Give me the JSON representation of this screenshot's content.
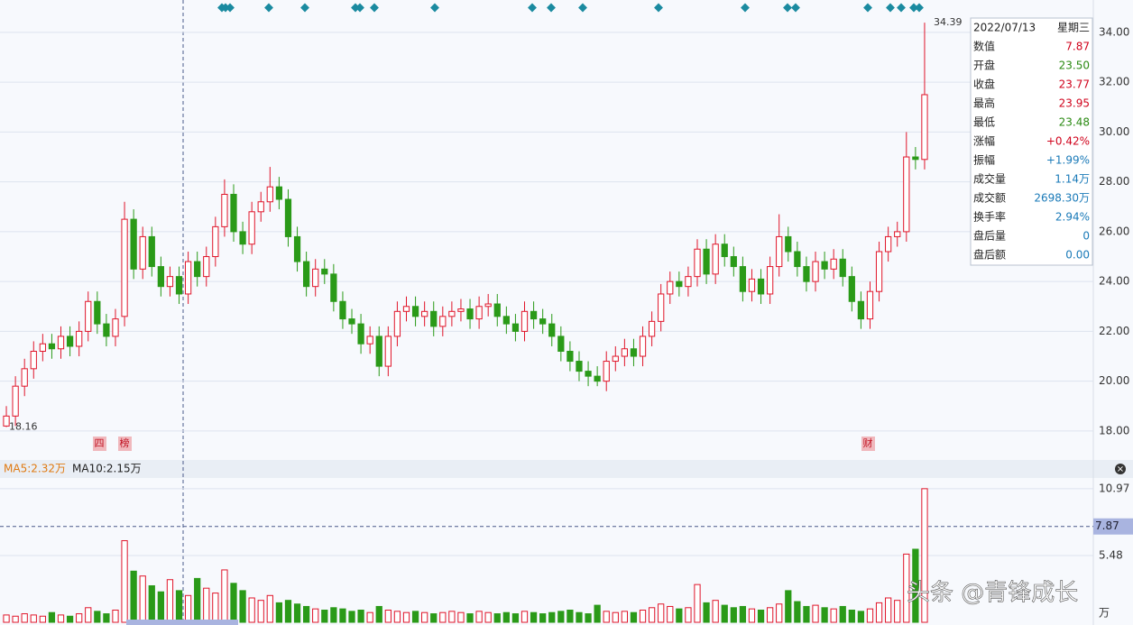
{
  "chart_data": {
    "type": "candlestick",
    "candles": {
      "open": [
        18.2,
        18.6,
        19.8,
        20.5,
        21.2,
        21.5,
        21.3,
        21.8,
        21.4,
        22.0,
        23.2,
        22.3,
        21.8,
        22.6,
        26.5,
        24.5,
        25.8,
        24.6,
        23.8,
        24.2,
        23.5,
        24.8,
        24.2,
        25.0,
        26.2,
        27.5,
        26.0,
        25.5,
        26.8,
        27.2,
        27.8,
        27.3,
        25.8,
        24.8,
        23.8,
        24.5,
        24.3,
        23.2,
        22.5,
        22.3,
        21.5,
        21.8,
        20.6,
        21.8,
        22.8,
        23.0,
        22.6,
        22.8,
        22.2,
        22.6,
        22.8,
        22.9,
        22.5,
        23.0,
        23.1,
        22.6,
        22.3,
        22.0,
        22.8,
        22.5,
        22.3,
        21.8,
        21.2,
        20.8,
        20.4,
        20.2,
        20.0,
        20.8,
        21.0,
        21.3,
        21.0,
        21.8,
        22.4,
        23.5,
        24.0,
        23.8,
        24.2,
        25.3,
        24.3,
        25.5,
        25.0,
        24.6,
        23.6,
        24.1,
        23.5,
        24.6,
        25.8,
        25.2,
        24.6,
        24.0,
        24.8,
        24.5,
        24.9,
        24.2,
        23.2,
        22.5,
        23.6,
        25.2,
        25.8,
        26.0,
        29.0,
        28.9
      ],
      "high": [
        19.0,
        20.2,
        20.9,
        21.6,
        21.9,
        21.9,
        22.2,
        22.2,
        22.4,
        23.6,
        23.6,
        22.7,
        22.9,
        27.2,
        26.9,
        26.2,
        26.2,
        25.0,
        24.6,
        24.6,
        25.2,
        25.2,
        25.4,
        26.6,
        28.1,
        27.9,
        26.4,
        27.2,
        27.6,
        28.6,
        28.2,
        27.7,
        26.2,
        25.2,
        24.9,
        24.9,
        24.7,
        23.6,
        22.9,
        22.7,
        22.2,
        22.2,
        22.2,
        23.2,
        23.4,
        23.4,
        23.2,
        23.2,
        23.0,
        23.2,
        23.3,
        23.3,
        23.4,
        23.5,
        23.5,
        23.0,
        22.7,
        23.2,
        23.2,
        22.9,
        22.7,
        22.2,
        21.6,
        21.2,
        20.8,
        20.6,
        21.2,
        21.4,
        21.7,
        21.7,
        22.2,
        22.8,
        23.9,
        24.4,
        24.4,
        24.6,
        25.7,
        25.7,
        25.9,
        25.9,
        25.4,
        25.0,
        24.5,
        24.5,
        25.0,
        26.7,
        26.2,
        25.6,
        25.0,
        25.2,
        25.2,
        25.3,
        25.3,
        24.6,
        23.6,
        24.0,
        25.6,
        26.2,
        26.4,
        30.0,
        29.4,
        34.39
      ],
      "low": [
        18.16,
        18.2,
        19.4,
        20.1,
        20.8,
        20.9,
        20.9,
        21.0,
        21.0,
        21.6,
        21.9,
        21.4,
        21.4,
        22.2,
        24.1,
        24.1,
        24.2,
        23.4,
        23.4,
        23.1,
        23.1,
        23.8,
        23.8,
        24.6,
        25.8,
        25.6,
        25.1,
        25.1,
        26.4,
        26.8,
        26.9,
        25.4,
        24.4,
        23.4,
        23.4,
        23.9,
        22.8,
        22.1,
        21.9,
        21.1,
        21.1,
        20.2,
        20.2,
        21.4,
        22.4,
        22.2,
        22.2,
        21.8,
        21.8,
        22.2,
        22.4,
        22.1,
        22.1,
        22.6,
        22.2,
        21.9,
        21.6,
        21.6,
        22.1,
        21.9,
        21.4,
        20.8,
        20.4,
        20.0,
        19.8,
        19.8,
        19.6,
        20.4,
        20.6,
        20.6,
        20.6,
        21.4,
        22.0,
        23.1,
        23.4,
        23.4,
        23.8,
        23.9,
        23.9,
        24.6,
        24.2,
        23.2,
        23.2,
        23.1,
        23.1,
        24.2,
        24.8,
        24.2,
        23.6,
        23.6,
        24.1,
        24.1,
        23.8,
        22.8,
        22.1,
        22.1,
        23.2,
        24.8,
        25.4,
        25.6,
        28.5,
        28.5
      ],
      "close": [
        18.6,
        19.8,
        20.5,
        21.2,
        21.5,
        21.3,
        21.8,
        21.4,
        22.0,
        23.2,
        22.3,
        21.8,
        22.5,
        26.5,
        24.5,
        25.8,
        24.6,
        23.8,
        24.2,
        23.5,
        24.8,
        24.2,
        25.0,
        26.2,
        27.5,
        26.0,
        25.5,
        26.8,
        27.2,
        27.8,
        27.3,
        25.8,
        24.8,
        23.8,
        24.5,
        24.3,
        23.2,
        22.5,
        22.3,
        21.5,
        21.8,
        20.6,
        21.8,
        22.8,
        23.0,
        22.6,
        22.8,
        22.2,
        22.6,
        22.8,
        22.9,
        22.5,
        23.0,
        23.1,
        22.6,
        22.3,
        22.0,
        22.8,
        22.5,
        22.3,
        21.8,
        21.2,
        20.8,
        20.4,
        20.2,
        20.0,
        20.8,
        21.0,
        21.3,
        21.0,
        21.8,
        22.4,
        23.5,
        24.0,
        23.8,
        24.2,
        25.3,
        24.3,
        25.5,
        25.0,
        24.6,
        23.6,
        24.1,
        23.5,
        24.6,
        25.8,
        25.2,
        24.6,
        24.0,
        24.8,
        24.5,
        24.9,
        24.2,
        23.2,
        22.5,
        23.6,
        25.2,
        25.8,
        26.0,
        29.0,
        28.9,
        31.5
      ],
      "volume": [
        0.6,
        0.5,
        0.7,
        0.6,
        0.5,
        0.8,
        0.6,
        0.5,
        0.7,
        1.2,
        0.9,
        0.7,
        1.0,
        6.7,
        4.2,
        3.8,
        3.0,
        2.5,
        3.5,
        2.6,
        2.2,
        3.6,
        2.8,
        2.4,
        4.3,
        3.2,
        2.6,
        2.0,
        1.8,
        2.2,
        1.6,
        1.8,
        1.5,
        1.3,
        1.1,
        1.0,
        1.2,
        1.1,
        0.9,
        1.0,
        0.8,
        1.3,
        1.0,
        0.9,
        0.8,
        0.9,
        0.8,
        0.7,
        0.8,
        0.9,
        0.8,
        0.7,
        0.9,
        0.8,
        0.7,
        0.8,
        0.7,
        0.9,
        0.8,
        0.7,
        0.8,
        0.9,
        1.0,
        0.8,
        0.7,
        1.4,
        0.9,
        0.8,
        0.9,
        0.8,
        1.0,
        1.2,
        1.5,
        1.3,
        1.1,
        1.2,
        3.1,
        1.6,
        1.8,
        1.4,
        1.2,
        1.3,
        1.1,
        1.0,
        1.2,
        1.5,
        2.6,
        1.7,
        1.3,
        1.4,
        1.2,
        1.1,
        1.3,
        1.0,
        0.9,
        1.1,
        1.6,
        2.0,
        1.8,
        5.6,
        6.0,
        10.97
      ]
    },
    "up_color": "#e0152a",
    "down_color": "#2a9a18",
    "ylim": [
      17.2,
      35.3
    ],
    "yticks": [
      {
        "value": 18,
        "label": "18.00"
      },
      {
        "value": 20,
        "label": "20.00"
      },
      {
        "value": 22,
        "label": "22.00"
      },
      {
        "value": 24,
        "label": "24.00"
      },
      {
        "value": 26,
        "label": "26.00"
      },
      {
        "value": 28,
        "label": "28.00"
      },
      {
        "value": 30,
        "label": "30.00"
      },
      {
        "value": 32,
        "label": "32.00"
      },
      {
        "value": 34,
        "label": "34.00"
      }
    ],
    "volume_ylim": [
      0,
      11.7
    ],
    "volume_yticks": [
      5.48,
      10.97
    ],
    "volume_unit": "万",
    "volume_cursor": 7.87,
    "ma_labels": [
      "MA5:2.32万",
      "MA10:2.15万"
    ],
    "event_labels": [
      "四",
      "榜",
      "财"
    ],
    "grid": true
  },
  "info": {
    "date": "2022/07/13",
    "weekday": "星期三",
    "rows": [
      {
        "label": "数值",
        "value": "7.87",
        "color": "#d0021b"
      },
      {
        "label": "开盘",
        "value": "23.50",
        "color": "#2a8a12"
      },
      {
        "label": "收盘",
        "value": "23.77",
        "color": "#d0021b"
      },
      {
        "label": "最高",
        "value": "23.95",
        "color": "#d0021b"
      },
      {
        "label": "最低",
        "value": "23.48",
        "color": "#2a8a12"
      },
      {
        "label": "涨幅",
        "value": "+0.42%",
        "color": "#d0021b"
      },
      {
        "label": "振幅",
        "value": "+1.99%",
        "color": "#1a7ab8"
      },
      {
        "label": "成交量",
        "value": "1.14万",
        "color": "#1a7ab8"
      },
      {
        "label": "成交额",
        "value": "2698.30万",
        "color": "#1a7ab8"
      },
      {
        "label": "换手率",
        "value": "2.94%",
        "color": "#1a7ab8"
      },
      {
        "label": "盘后量",
        "value": "0",
        "color": "#1a7ab8"
      },
      {
        "label": "盘后额",
        "value": "0.00",
        "color": "#1a7ab8"
      }
    ]
  },
  "watermark": "头条 @青锋成长"
}
